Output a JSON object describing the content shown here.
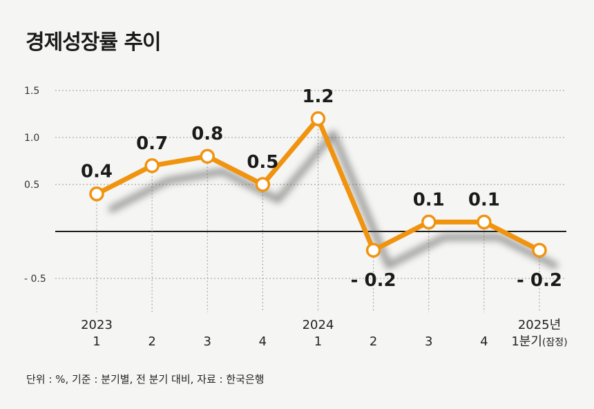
{
  "title": "경제성장률 추이",
  "source_note": "단위 : %, 기준 : 분기별, 전 분기 대비, 자료 : 한국은행",
  "chart_data": {
    "type": "line",
    "title": "경제성장률 추이",
    "ylim": [
      -0.5,
      1.5
    ],
    "yticks": [
      {
        "value": 1.5,
        "label": "1.5"
      },
      {
        "value": 1.0,
        "label": "1.0"
      },
      {
        "value": 0.5,
        "label": "0.5"
      },
      {
        "value": -0.5,
        "label": "- 0.5"
      }
    ],
    "categories": [
      {
        "year": "2023",
        "quarter": "1"
      },
      {
        "year": "",
        "quarter": "2"
      },
      {
        "year": "",
        "quarter": "3"
      },
      {
        "year": "",
        "quarter": "4"
      },
      {
        "year": "2024",
        "quarter": "1"
      },
      {
        "year": "",
        "quarter": "2"
      },
      {
        "year": "",
        "quarter": "3"
      },
      {
        "year": "",
        "quarter": "4"
      },
      {
        "year": "2025년",
        "quarter": "1분기",
        "note": "(잠정)"
      }
    ],
    "values": [
      0.4,
      0.7,
      0.8,
      0.5,
      1.2,
      -0.2,
      0.1,
      0.1,
      -0.2
    ],
    "value_labels": [
      "0.4",
      "0.7",
      "0.8",
      "0.5",
      "1.2",
      "- 0.2",
      "0.1",
      "0.1",
      "- 0.2"
    ],
    "grid": true,
    "colors": {
      "line": "#f0930f",
      "marker_fill": "#ffffff",
      "zero_line": "#1a1a1a",
      "grid": "#999999",
      "shadow": "#555555"
    }
  }
}
